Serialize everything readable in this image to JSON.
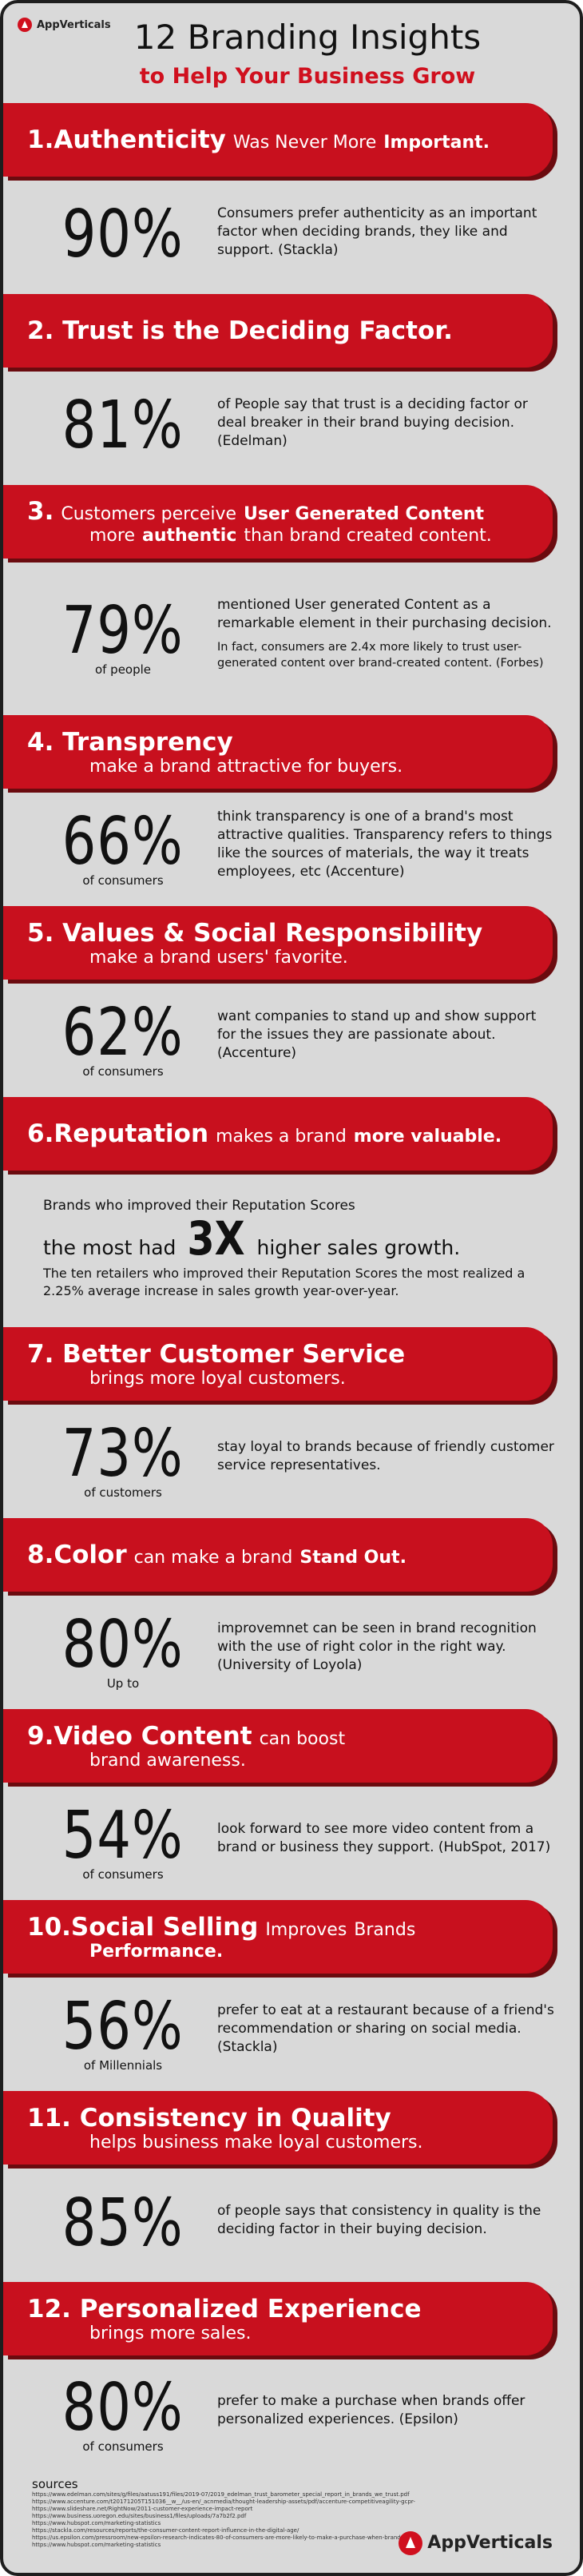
{
  "header": {
    "logo": "AppVerticals",
    "title": "12 Branding Insights",
    "subtitle": "to Help Your Business Grow"
  },
  "sections": [
    {
      "heading": [
        [
          {
            "text": "1.Authenticity",
            "bold": true
          },
          {
            "text": "Was Never More",
            "bold": false
          },
          {
            "text": "Important.",
            "bold": true
          }
        ]
      ],
      "stat": {
        "number": "90%",
        "desc": [
          "Consumers prefer authenticity as an important factor when deciding brands, they like and support. (Stackla)"
        ]
      }
    },
    {
      "heading": [
        [
          {
            "text": "2. Trust is the Deciding Factor.",
            "bold": true
          }
        ]
      ],
      "stat": {
        "number": "81%",
        "desc": [
          "of People say that trust is a deciding factor or deal breaker in their brand buying decision. (Edelman)"
        ]
      }
    },
    {
      "heading": [
        [
          {
            "text": "3.",
            "bold": true
          },
          {
            "text": "Customers perceive",
            "bold": false
          },
          {
            "text": "User Generated Content",
            "bold": true
          }
        ],
        [
          {
            "text": "more",
            "bold": false
          },
          {
            "text": "authentic",
            "bold": true
          },
          {
            "text": "than brand created content.",
            "bold": false
          }
        ]
      ],
      "stat": {
        "number": "79%",
        "label": "of people",
        "desc": [
          "mentioned User generated Content as a remarkable element in their purchasing decision.",
          "In fact, consumers are 2.4x more likely to trust user-generated content over brand-created content. (Forbes)"
        ]
      }
    },
    {
      "heading": [
        [
          {
            "text": "4. Transprency",
            "bold": true
          }
        ],
        [
          {
            "text": "make a brand attractive for buyers.",
            "bold": false
          }
        ]
      ],
      "stat": {
        "number": "66%",
        "label": "of consumers",
        "desc": [
          "think transparency is one of a brand's most attractive qualities. Transparency refers to things like the sources of materials, the way it treats employees, etc (Accenture)"
        ]
      }
    },
    {
      "heading": [
        [
          {
            "text": "5. Values & Social Responsibility",
            "bold": true
          }
        ],
        [
          {
            "text": "make a brand users' favorite.",
            "bold": false
          }
        ]
      ],
      "stat": {
        "number": "62%",
        "label": "of consumers",
        "desc": [
          "want companies to stand up and show support for the issues they are passionate about. (Accenture)"
        ]
      }
    },
    {
      "heading": [
        [
          {
            "text": "6.Reputation",
            "bold": true
          },
          {
            "text": "makes a brand",
            "bold": false
          },
          {
            "text": "more valuable.",
            "bold": true
          }
        ]
      ],
      "stat": {
        "lead": "Brands who improved their Reputation Scores",
        "prefix": "the most had",
        "number": "3X",
        "suffix": "higher sales growth.",
        "desc": [
          "The ten retailers who improved their Reputation Scores the most realized a 2.25% average increase in sales growth year-over-year."
        ]
      }
    },
    {
      "heading": [
        [
          {
            "text": "7. Better Customer Service",
            "bold": true
          }
        ],
        [
          {
            "text": "brings more loyal customers.",
            "bold": false
          }
        ]
      ],
      "stat": {
        "number": "73%",
        "label": "of customers",
        "desc": [
          "stay loyal to brands because of friendly customer service representatives."
        ]
      }
    },
    {
      "heading": [
        [
          {
            "text": "8.Color",
            "bold": true
          },
          {
            "text": "can make a brand",
            "bold": false
          },
          {
            "text": "Stand Out.",
            "bold": true
          }
        ]
      ],
      "stat": {
        "number": "80%",
        "label": "Up to",
        "desc": [
          "improvemnet can be seen in brand recognition with the use of right color in the right way. (University of Loyola)"
        ]
      }
    },
    {
      "heading": [
        [
          {
            "text": "9.Video Content",
            "bold": true
          },
          {
            "text": "can boost",
            "bold": false
          }
        ],
        [
          {
            "text": "brand awareness.",
            "bold": false
          }
        ]
      ],
      "stat": {
        "number": "54%",
        "label": "of consumers",
        "desc": [
          "look forward to see more video content from a brand or business they support. (HubSpot, 2017)"
        ]
      }
    },
    {
      "heading": [
        [
          {
            "text": "10.Social Selling",
            "bold": true
          },
          {
            "text": "Improves",
            "bold": false
          },
          {
            "text": "Brands",
            "bold": false
          }
        ],
        [
          {
            "text": "Performance.",
            "bold": true
          }
        ]
      ],
      "stat": {
        "number": "56%",
        "label": "of Millennials",
        "desc": [
          "prefer to eat at a restaurant because of a friend's recommendation or sharing on social media. (Stackla)"
        ]
      }
    },
    {
      "heading": [
        [
          {
            "text": "11. Consistency in Quality",
            "bold": true
          }
        ],
        [
          {
            "text": "helps business make loyal customers.",
            "bold": false
          }
        ]
      ],
      "stat": {
        "number": "85%",
        "desc": [
          "of people says that consistency in quality is the deciding factor in their buying decision."
        ]
      }
    },
    {
      "heading": [
        [
          {
            "text": "12. Personalized Experience",
            "bold": true
          }
        ],
        [
          {
            "text": "brings more sales.",
            "bold": false
          }
        ]
      ],
      "stat": {
        "number": "80%",
        "label": "of consumers",
        "desc": [
          "prefer to make a purchase  when brands offer personalized experiences. (Epsilon)"
        ]
      }
    }
  ],
  "footer": {
    "sources_title": "sources",
    "sources": [
      "https://www.edelman.com/sites/g/files/aatuss191/files/2019-07/2019_edelman_trust_barometer_special_report_in_brands_we_trust.pdf",
      "https://www.accenture.com/t20171205T151036__w__/us-en/_acnmedia/thought-leadership-assets/pdf/accenture-competitiveagility-gcpr-pov.pdf#zoom=50",
      "https://www.slideshare.net/RightNow/2011-customer-experience-impact-report",
      "https://www.business.uoregon.edu/sites/business1/files/uploads/7a7b2f2.pdf",
      "https://www.hubspot.com/marketing-statistics",
      "https://stackla.com/resources/reports/the-consumer-content-report-influence-in-the-digital-age/",
      "https://us.epsilon.com/pressroom/new-epsilon-research-indicates-80-of-consumers-are-more-likely-to-make-a-purchase-when-brands-offer-personalized-experiences",
      "https://www.hubspot.com/marketing-statistics"
    ],
    "logo": "AppVerticals"
  }
}
